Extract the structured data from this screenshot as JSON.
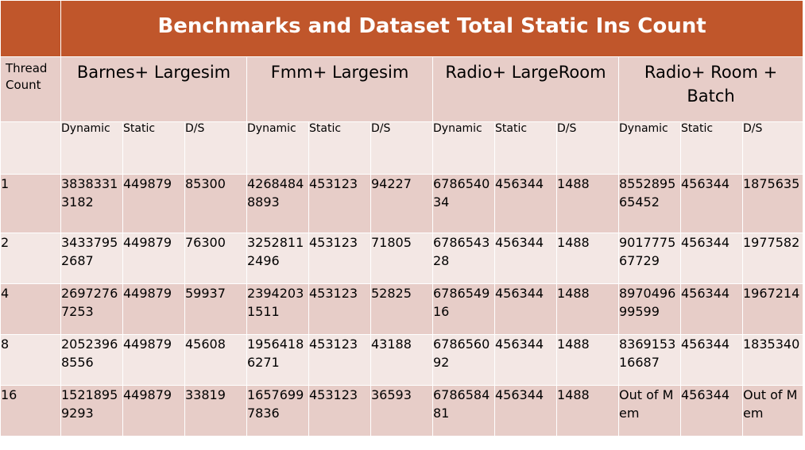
{
  "title": "Benchmarks and Dataset Total Static Ins Count",
  "thread_count_header": "Thread Count",
  "groups": [
    "Barnes+ Largesim",
    "Fmm+ Largesim",
    "Radio+ LargeRoom",
    "Radio+ Room + Batch"
  ],
  "sub_headers": [
    "Dynamic",
    "Static",
    "D/S"
  ],
  "rows": [
    {
      "thread": "1",
      "cells": [
        "38383313182",
        "449879",
        "85300",
        "42684848893",
        "453123",
        "94227",
        "678654034",
        "456344",
        "1488",
        "855289565452",
        "456344",
        "1875635"
      ]
    },
    {
      "thread": "2",
      "cells": [
        "34337952687",
        "449879",
        "76300",
        "32528112496",
        "453123",
        "71805",
        "678654328",
        "456344",
        "1488",
        "901777567729",
        "456344",
        "1977582"
      ]
    },
    {
      "thread": "4",
      "cells": [
        "26972767253",
        "449879",
        "59937",
        "23942031511",
        "453123",
        "52825",
        "678654916",
        "456344",
        "1488",
        "897049699599",
        "456344",
        "1967214"
      ]
    },
    {
      "thread": "8",
      "cells": [
        "20523968556",
        "449879",
        "45608",
        "19564186271",
        "453123",
        "43188",
        "678656092",
        "456344",
        "1488",
        "836915316687",
        "456344",
        "1835340"
      ]
    },
    {
      "thread": "16",
      "cells": [
        "15218959293",
        "449879",
        "33819",
        "16576997836",
        "453123",
        "36593",
        "678658481",
        "456344",
        "1488",
        "Out of Mem",
        "456344",
        "Out of Mem"
      ]
    }
  ]
}
